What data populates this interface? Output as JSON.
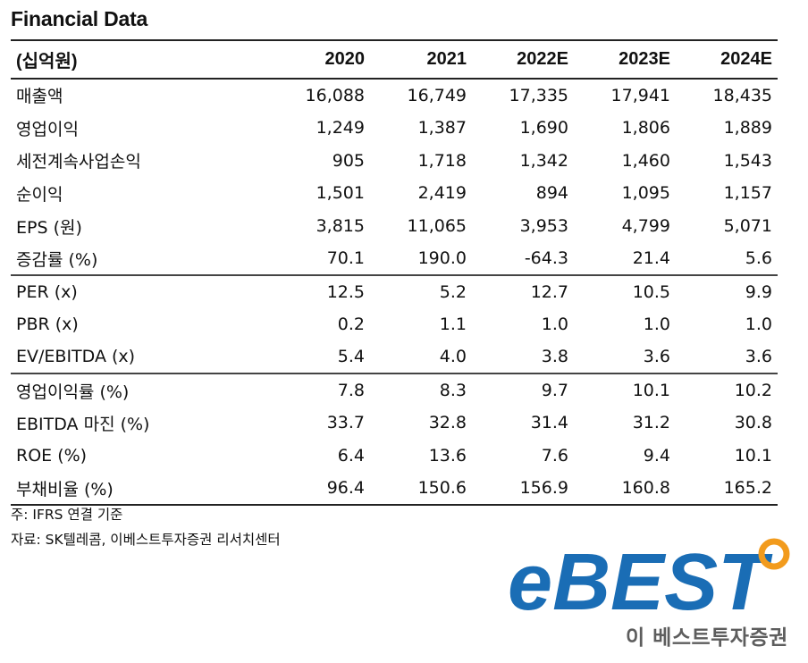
{
  "title": "Financial Data",
  "table": {
    "header": [
      "(십억원)",
      "2020",
      "2021",
      "2022E",
      "2023E",
      "2024E"
    ],
    "rows": [
      {
        "label": "매출액",
        "values": [
          "16,088",
          "16,749",
          "17,335",
          "17,941",
          "18,435"
        ]
      },
      {
        "label": "영업이익",
        "values": [
          "1,249",
          "1,387",
          "1,690",
          "1,806",
          "1,889"
        ]
      },
      {
        "label": "세전계속사업손익",
        "values": [
          "905",
          "1,718",
          "1,342",
          "1,460",
          "1,543"
        ]
      },
      {
        "label": "순이익",
        "values": [
          "1,501",
          "2,419",
          "894",
          "1,095",
          "1,157"
        ]
      },
      {
        "label": "EPS (원)",
        "values": [
          "3,815",
          "11,065",
          "3,953",
          "4,799",
          "5,071"
        ]
      },
      {
        "label": "증감률 (%)",
        "values": [
          "70.1",
          "190.0",
          "-64.3",
          "21.4",
          "5.6"
        ]
      },
      {
        "label": "PER (x)",
        "values": [
          "12.5",
          "5.2",
          "12.7",
          "10.5",
          "9.9"
        ]
      },
      {
        "label": "PBR (x)",
        "values": [
          "0.2",
          "1.1",
          "1.0",
          "1.0",
          "1.0"
        ]
      },
      {
        "label": "EV/EBITDA (x)",
        "values": [
          "5.4",
          "4.0",
          "3.8",
          "3.6",
          "3.6"
        ]
      },
      {
        "label": "영업이익률 (%)",
        "values": [
          "7.8",
          "8.3",
          "9.7",
          "10.1",
          "10.2"
        ]
      },
      {
        "label": "EBITDA 마진 (%)",
        "values": [
          "33.7",
          "32.8",
          "31.4",
          "31.2",
          "30.8"
        ]
      },
      {
        "label": "ROE (%)",
        "values": [
          "6.4",
          "13.6",
          "7.6",
          "9.4",
          "10.1"
        ]
      },
      {
        "label": "부채비율 (%)",
        "values": [
          "96.4",
          "150.6",
          "156.9",
          "160.8",
          "165.2"
        ]
      }
    ]
  },
  "notes": {
    "note1": "주: IFRS 연결 기준",
    "note2": "자료: SK텔레콤, 이베스트투자증권 리서치센터"
  },
  "logo": {
    "main": "eBEST",
    "sub": "이 베스트투자증권",
    "colors": {
      "blue": "#1a6db5",
      "orange": "#f29b1d",
      "gray": "#5d5d5d"
    }
  }
}
